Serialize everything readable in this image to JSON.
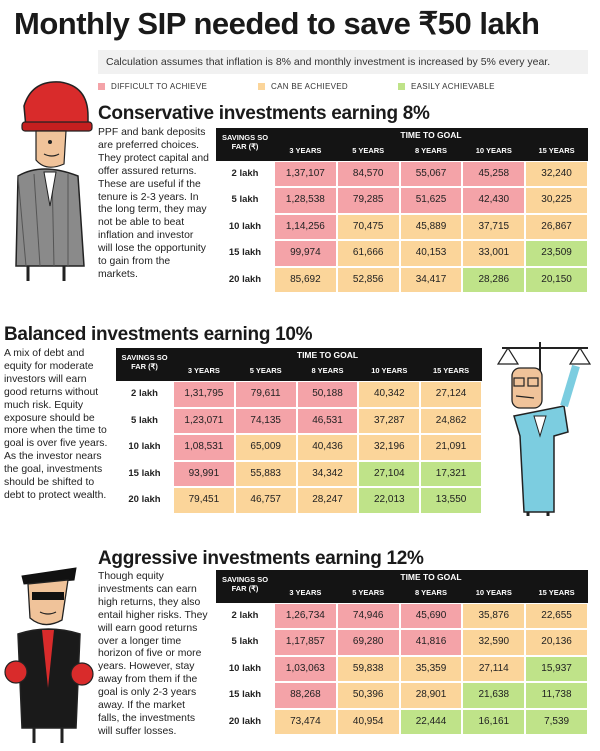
{
  "title": "Monthly SIP needed to save ₹50 lakh",
  "subtitle": "Calculation assumes that inflation is 8% and monthly investment is increased by 5% every year.",
  "legend": [
    {
      "label": "DIFFICULT TO ACHIEVE",
      "color": "#f4a3a8"
    },
    {
      "label": "CAN BE ACHIEVED",
      "color": "#fbd59a"
    },
    {
      "label": "EASILY ACHIEVABLE",
      "color": "#bfe389"
    }
  ],
  "colors": {
    "difficult": "#f4a3a8",
    "achievable": "#fbd59a",
    "easy": "#bfe389",
    "header": "#141414"
  },
  "chart_data": [
    {
      "type": "table",
      "title": "Conservative investments earning 8%",
      "description": "PPF and bank deposits are preferred choices. They protect capital and offer assured returns. These are useful if the tenure is 2-3 years. In the long term, they may not be able to beat inflation and investor will lose the opportunity to gain from the markets.",
      "row_header": "SAVINGS SO FAR (₹)",
      "col_group_header": "TIME TO GOAL",
      "columns": [
        "3 YEARS",
        "5 YEARS",
        "8 YEARS",
        "10 YEARS",
        "15 YEARS"
      ],
      "rows": [
        "2 lakh",
        "5 lakh",
        "10 lakh",
        "15 lakh",
        "20 lakh"
      ],
      "values": [
        [
          "1,37,107",
          "84,570",
          "55,067",
          "45,258",
          "32,240"
        ],
        [
          "1,28,538",
          "79,285",
          "51,625",
          "42,430",
          "30,225"
        ],
        [
          "1,14,256",
          "70,475",
          "45,889",
          "37,715",
          "26,867"
        ],
        [
          "99,974",
          "61,666",
          "40,153",
          "33,001",
          "23,509"
        ],
        [
          "85,692",
          "52,856",
          "34,417",
          "28,286",
          "20,150"
        ]
      ],
      "ratings": [
        [
          "difficult",
          "difficult",
          "difficult",
          "difficult",
          "achievable"
        ],
        [
          "difficult",
          "difficult",
          "difficult",
          "difficult",
          "achievable"
        ],
        [
          "difficult",
          "achievable",
          "achievable",
          "achievable",
          "achievable"
        ],
        [
          "difficult",
          "achievable",
          "achievable",
          "achievable",
          "easy"
        ],
        [
          "achievable",
          "achievable",
          "achievable",
          "easy",
          "easy"
        ]
      ]
    },
    {
      "type": "table",
      "title": "Balanced investments earning 10%",
      "description": "A mix of debt and equity for moderate investors will earn good returns without much risk. Equity exposure should be more when the time to goal is over five years. As the investor nears the goal, investments should be shifted to debt to protect wealth.",
      "row_header": "SAVINGS SO FAR (₹)",
      "col_group_header": "TIME TO GOAL",
      "columns": [
        "3 YEARS",
        "5 YEARS",
        "8 YEARS",
        "10 YEARS",
        "15 YEARS"
      ],
      "rows": [
        "2 lakh",
        "5 lakh",
        "10 lakh",
        "15 lakh",
        "20 lakh"
      ],
      "values": [
        [
          "1,31,795",
          "79,611",
          "50,188",
          "40,342",
          "27,124"
        ],
        [
          "1,23,071",
          "74,135",
          "46,531",
          "37,287",
          "24,862"
        ],
        [
          "1,08,531",
          "65,009",
          "40,436",
          "32,196",
          "21,091"
        ],
        [
          "93,991",
          "55,883",
          "34,342",
          "27,104",
          "17,321"
        ],
        [
          "79,451",
          "46,757",
          "28,247",
          "22,013",
          "13,550"
        ]
      ],
      "ratings": [
        [
          "difficult",
          "difficult",
          "difficult",
          "achievable",
          "achievable"
        ],
        [
          "difficult",
          "difficult",
          "difficult",
          "achievable",
          "achievable"
        ],
        [
          "difficult",
          "achievable",
          "achievable",
          "achievable",
          "achievable"
        ],
        [
          "difficult",
          "achievable",
          "achievable",
          "easy",
          "easy"
        ],
        [
          "achievable",
          "achievable",
          "achievable",
          "easy",
          "easy"
        ]
      ]
    },
    {
      "type": "table",
      "title": "Aggressive investments earning 12%",
      "description": "Though equity investments can earn high returns, they also entail higher risks. They will earn good returns over a longer time horizon of five or more years. However, stay away from them if the goal is only 2-3 years away. If the market falls, the investments will suffer losses.",
      "row_header": "SAVINGS SO FAR (₹)",
      "col_group_header": "TIME TO GOAL",
      "columns": [
        "3 YEARS",
        "5 YEARS",
        "8 YEARS",
        "10 YEARS",
        "15 YEARS"
      ],
      "rows": [
        "2 lakh",
        "5 lakh",
        "10 lakh",
        "15 lakh",
        "20 lakh"
      ],
      "values": [
        [
          "1,26,734",
          "74,946",
          "45,690",
          "35,876",
          "22,655"
        ],
        [
          "1,17,857",
          "69,280",
          "41,816",
          "32,590",
          "20,136"
        ],
        [
          "1,03,063",
          "59,838",
          "35,359",
          "27,114",
          "15,937"
        ],
        [
          "88,268",
          "50,396",
          "28,901",
          "21,638",
          "11,738"
        ],
        [
          "73,474",
          "40,954",
          "22,444",
          "16,161",
          "7,539"
        ]
      ],
      "ratings": [
        [
          "difficult",
          "difficult",
          "difficult",
          "achievable",
          "achievable"
        ],
        [
          "difficult",
          "difficult",
          "difficult",
          "achievable",
          "achievable"
        ],
        [
          "difficult",
          "achievable",
          "achievable",
          "achievable",
          "easy"
        ],
        [
          "difficult",
          "achievable",
          "achievable",
          "easy",
          "easy"
        ],
        [
          "achievable",
          "achievable",
          "easy",
          "easy",
          "easy"
        ]
      ]
    }
  ]
}
